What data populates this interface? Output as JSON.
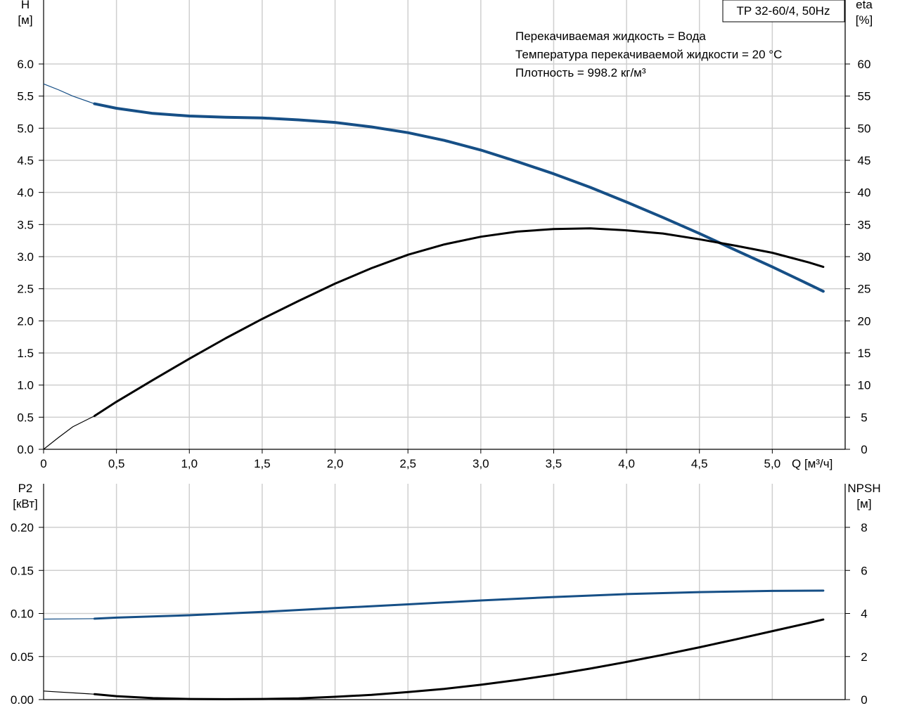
{
  "chart_data": [
    {
      "type": "line",
      "panel": "top",
      "title_box": "TP 32-60/4, 50Hz",
      "info_lines": [
        "Перекачиваемая жидкость = Вода",
        "Температура перекачиваемой жидкости = 20 °C",
        "Плотность = 998.2 кг/м³"
      ],
      "ylabel_left": [
        "H",
        "[м]"
      ],
      "ylabel_right": [
        "eta",
        "[%]"
      ],
      "xlabel": "Q [м³/ч]",
      "xlim": [
        0,
        5.5
      ],
      "ylim_left": [
        0,
        6.5
      ],
      "ylim_right": [
        0,
        65
      ],
      "x_ticks": [
        {
          "v": 0,
          "label": "0"
        },
        {
          "v": 0.5,
          "label": "0,5"
        },
        {
          "v": 1.0,
          "label": "1,0"
        },
        {
          "v": 1.5,
          "label": "1,5"
        },
        {
          "v": 2.0,
          "label": "2,0"
        },
        {
          "v": 2.5,
          "label": "2,5"
        },
        {
          "v": 3.0,
          "label": "3,0"
        },
        {
          "v": 3.5,
          "label": "3,5"
        },
        {
          "v": 4.0,
          "label": "4,0"
        },
        {
          "v": 4.5,
          "label": "4,5"
        },
        {
          "v": 5.0,
          "label": "5,0"
        }
      ],
      "y_ticks_left": [
        {
          "v": 0,
          "label": "0.0"
        },
        {
          "v": 0.5,
          "label": "0.5"
        },
        {
          "v": 1.0,
          "label": "1.0"
        },
        {
          "v": 1.5,
          "label": "1.5"
        },
        {
          "v": 2.0,
          "label": "2.0"
        },
        {
          "v": 2.5,
          "label": "2.5"
        },
        {
          "v": 3.0,
          "label": "3.0"
        },
        {
          "v": 3.5,
          "label": "3.5"
        },
        {
          "v": 4.0,
          "label": "4.0"
        },
        {
          "v": 4.5,
          "label": "4.5"
        },
        {
          "v": 5.0,
          "label": "5.0"
        },
        {
          "v": 5.5,
          "label": "5.5"
        },
        {
          "v": 6.0,
          "label": "6.0"
        }
      ],
      "y_ticks_right": [
        {
          "v": 0,
          "label": "0"
        },
        {
          "v": 5,
          "label": "5"
        },
        {
          "v": 10,
          "label": "10"
        },
        {
          "v": 15,
          "label": "15"
        },
        {
          "v": 20,
          "label": "20"
        },
        {
          "v": 25,
          "label": "25"
        },
        {
          "v": 30,
          "label": "30"
        },
        {
          "v": 35,
          "label": "35"
        },
        {
          "v": 40,
          "label": "40"
        },
        {
          "v": 45,
          "label": "45"
        },
        {
          "v": 50,
          "label": "50"
        },
        {
          "v": 55,
          "label": "55"
        },
        {
          "v": 60,
          "label": "60"
        }
      ],
      "grid": true,
      "series": [
        {
          "axis": "left",
          "color": "#164f86",
          "x": [
            0.0,
            0.1,
            0.2,
            0.35,
            0.5,
            0.75,
            1.0,
            1.25,
            1.5,
            1.75,
            2.0,
            2.25,
            2.5,
            2.75,
            3.0,
            3.25,
            3.5,
            3.75,
            4.0,
            4.25,
            4.5,
            4.75,
            5.0,
            5.25,
            5.35
          ],
          "y": [
            5.69,
            5.6,
            5.5,
            5.38,
            5.31,
            5.23,
            5.19,
            5.17,
            5.16,
            5.13,
            5.09,
            5.02,
            4.93,
            4.81,
            4.66,
            4.48,
            4.29,
            4.08,
            3.85,
            3.61,
            3.36,
            3.1,
            2.84,
            2.57,
            2.46
          ],
          "highlight_from": 0.35
        },
        {
          "axis": "right",
          "color": "#000000",
          "x": [
            0.0,
            0.1,
            0.2,
            0.35,
            0.5,
            0.75,
            1.0,
            1.25,
            1.5,
            1.75,
            2.0,
            2.25,
            2.5,
            2.75,
            3.0,
            3.25,
            3.5,
            3.75,
            4.0,
            4.25,
            4.5,
            4.75,
            5.0,
            5.25,
            5.35
          ],
          "y": [
            0,
            1.8,
            3.5,
            5.2,
            7.4,
            10.8,
            14.1,
            17.3,
            20.3,
            23.1,
            25.8,
            28.2,
            30.3,
            31.9,
            33.1,
            33.9,
            34.3,
            34.4,
            34.1,
            33.6,
            32.7,
            31.7,
            30.6,
            29.1,
            28.4
          ],
          "highlight_from": 0.35
        }
      ]
    },
    {
      "type": "line",
      "panel": "bottom",
      "ylabel_left": [
        "P2",
        "[кВт]"
      ],
      "ylabel_right": [
        "NPSH",
        "[м]"
      ],
      "xlim": [
        0,
        5.5
      ],
      "ylim_left": [
        0,
        0.2
      ],
      "ylim_right": [
        0,
        8
      ],
      "y_ticks_left": [
        {
          "v": 0,
          "label": "0.00"
        },
        {
          "v": 0.05,
          "label": "0.05"
        },
        {
          "v": 0.1,
          "label": "0.10"
        },
        {
          "v": 0.15,
          "label": "0.15"
        },
        {
          "v": 0.2,
          "label": "0.20"
        }
      ],
      "y_ticks_right": [
        {
          "v": 0,
          "label": "0"
        },
        {
          "v": 2,
          "label": "2"
        },
        {
          "v": 4,
          "label": "4"
        },
        {
          "v": 6,
          "label": "6"
        },
        {
          "v": 8,
          "label": "8"
        }
      ],
      "grid": true,
      "series": [
        {
          "axis": "left",
          "color": "#164f86",
          "x": [
            0.0,
            0.35,
            0.5,
            1.0,
            1.5,
            2.0,
            2.5,
            3.0,
            3.5,
            4.0,
            4.5,
            5.0,
            5.35
          ],
          "y": [
            0.0935,
            0.094,
            0.0952,
            0.098,
            0.1018,
            0.1063,
            0.1106,
            0.1151,
            0.1191,
            0.1225,
            0.1248,
            0.1262,
            0.1265
          ],
          "highlight_from": 0.35
        },
        {
          "axis": "right",
          "color": "#000000",
          "x": [
            0.0,
            0.35,
            0.5,
            0.75,
            1.0,
            1.25,
            1.5,
            1.75,
            2.0,
            2.25,
            2.5,
            2.75,
            3.0,
            3.25,
            3.5,
            3.75,
            4.0,
            4.25,
            4.5,
            4.75,
            5.0,
            5.25,
            5.35
          ],
          "y": [
            0.4,
            0.25,
            0.16,
            0.07,
            0.03,
            0.02,
            0.03,
            0.06,
            0.13,
            0.22,
            0.35,
            0.5,
            0.69,
            0.91,
            1.16,
            1.44,
            1.75,
            2.08,
            2.43,
            2.8,
            3.18,
            3.56,
            3.72
          ],
          "highlight_from": 0.35
        }
      ]
    }
  ]
}
